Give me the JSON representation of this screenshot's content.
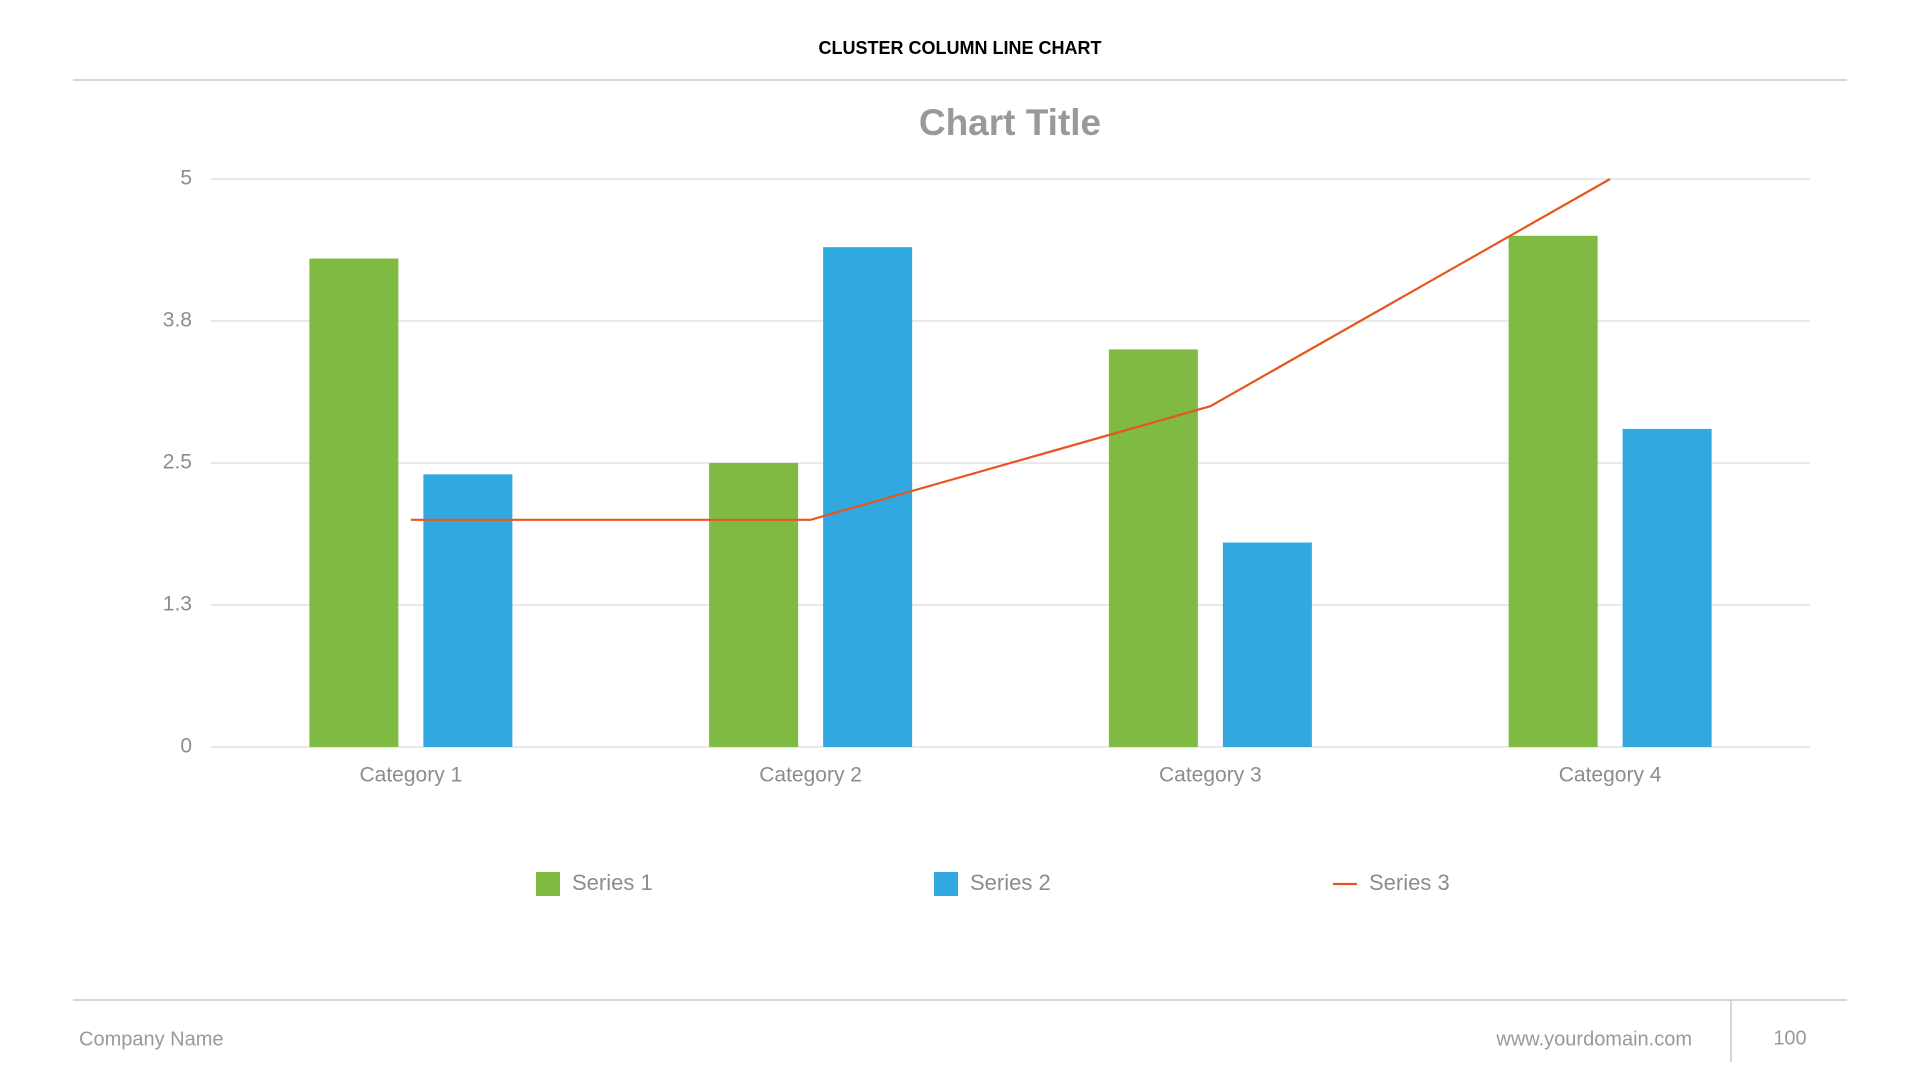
{
  "header": "CLUSTER COLUMN LINE CHART",
  "footer": {
    "company": "Company Name",
    "url": "www.yourdomain.com",
    "page": "100"
  },
  "chart_data": {
    "type": "bar",
    "title": "Chart Title",
    "categories": [
      "Category 1",
      "Category 2",
      "Category 3",
      "Category 4"
    ],
    "series": [
      {
        "name": "Series 1",
        "color": "#7fba42",
        "values": [
          4.3,
          2.5,
          3.5,
          4.5
        ]
      },
      {
        "name": "Series 2",
        "color": "#31a8df",
        "values": [
          2.4,
          4.4,
          1.8,
          2.8
        ]
      },
      {
        "name": "Series 3",
        "color": "#e8561f",
        "type": "line",
        "values": [
          2.0,
          2.0,
          3.0,
          5.0
        ]
      }
    ],
    "ylim": [
      0,
      5
    ],
    "yticks": [
      0,
      {
        "value": 1.25,
        "label": "1.3"
      },
      2.5,
      {
        "value": 3.75,
        "label": "3.8"
      },
      5
    ],
    "grid": true,
    "legend": "bottom"
  }
}
